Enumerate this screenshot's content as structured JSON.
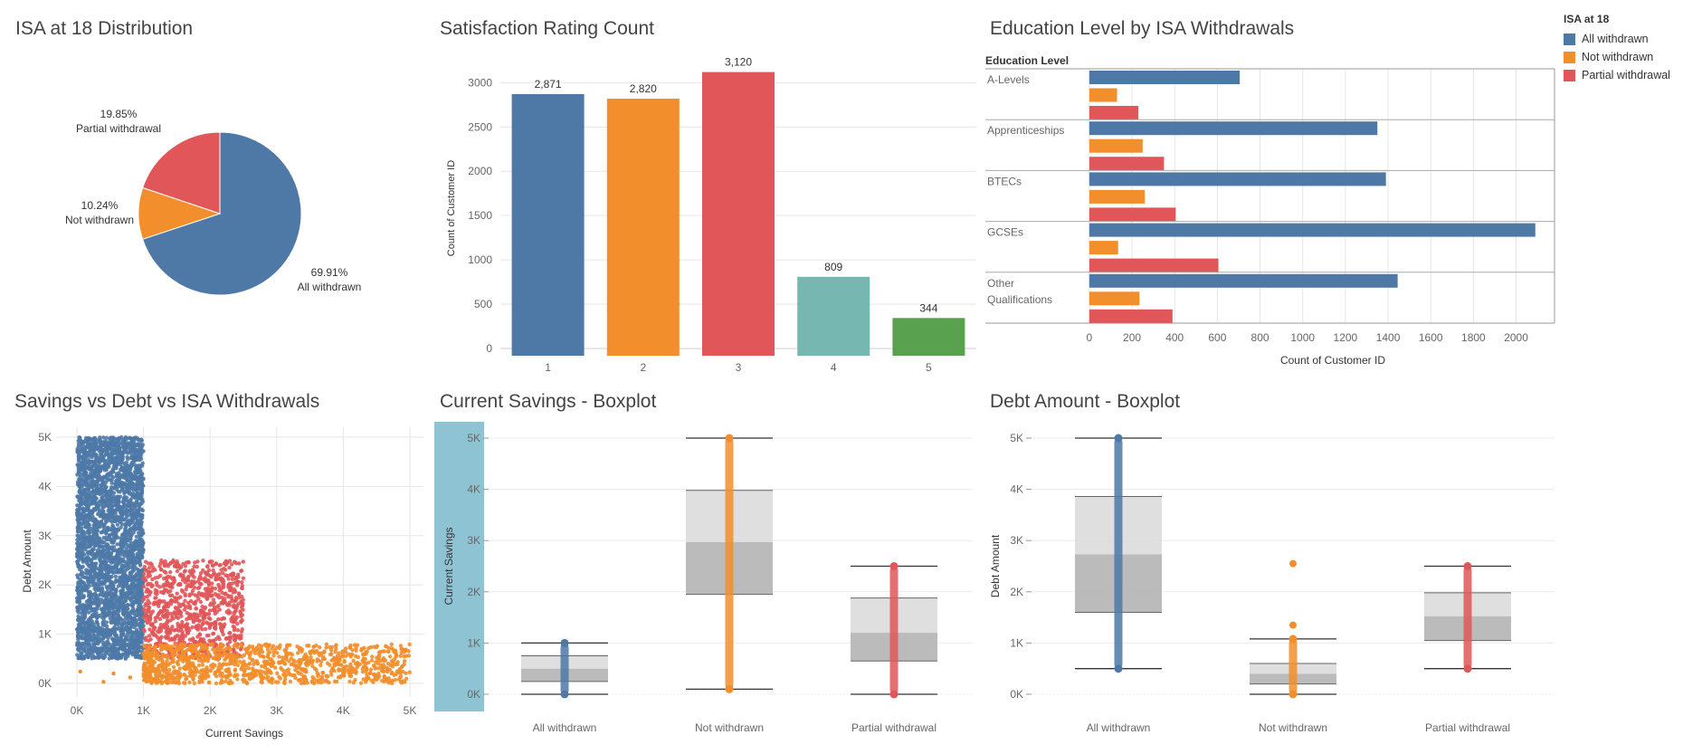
{
  "titles": {
    "pie": "ISA at 18 Distribution",
    "bar": "Satisfaction Rating Count",
    "edu": "Education Level by ISA Withdrawals",
    "scatter": "Savings vs Debt vs ISA Withdrawals",
    "box_savings": "Current Savings - Boxplot",
    "box_debt": "Debt Amount - Boxplot"
  },
  "colors": {
    "all_withdrawn": "#4e79a7",
    "not_withdrawn": "#f28e2b",
    "partial_withdrawal": "#e15759",
    "rating4": "#76b7b2",
    "rating5": "#59a14f",
    "highlight": "#8ec3d3"
  },
  "legend": {
    "title": "ISA at 18",
    "items": [
      "All withdrawn",
      "Not withdrawn",
      "Partial withdrawal"
    ]
  },
  "chart_data": [
    {
      "type": "pie",
      "title": "ISA at 18 Distribution",
      "slices": [
        {
          "label": "All withdrawn",
          "value": 69.91,
          "text": "69.91%"
        },
        {
          "label": "Not withdrawn",
          "value": 10.24,
          "text": "10.24%"
        },
        {
          "label": "Partial withdrawal",
          "value": 19.85,
          "text": "19.85%"
        }
      ]
    },
    {
      "type": "bar",
      "title": "Satisfaction Rating Count",
      "categories": [
        "1",
        "2",
        "3",
        "4",
        "5"
      ],
      "values": [
        2871,
        2820,
        3120,
        809,
        344
      ],
      "data_labels": [
        "2,871",
        "2,820",
        "3,120",
        "809",
        "344"
      ],
      "ylabel": "Count of Customer ID",
      "ylim": [
        0,
        3300
      ],
      "yticks": [
        0,
        500,
        1000,
        1500,
        2000,
        2500,
        3000
      ],
      "grid": true
    },
    {
      "type": "bar",
      "orientation": "horizontal",
      "title": "Education Level by ISA Withdrawals",
      "row_header": "Education Level",
      "categories": [
        "A-Levels",
        "Apprenticeships",
        "BTECs",
        "GCSEs",
        "Other Qualifications"
      ],
      "series": [
        {
          "name": "All withdrawn",
          "values": [
            705,
            1350,
            1390,
            2090,
            1445
          ]
        },
        {
          "name": "Not withdrawn",
          "values": [
            130,
            250,
            260,
            135,
            235
          ]
        },
        {
          "name": "Partial withdrawal",
          "values": [
            230,
            350,
            405,
            605,
            390
          ]
        }
      ],
      "xlabel": "Count of Customer ID",
      "xlim": [
        -80,
        2180
      ],
      "xticks": [
        0,
        200,
        400,
        600,
        800,
        1000,
        1200,
        1400,
        1600,
        1800,
        2000
      ],
      "grid": true
    },
    {
      "type": "scatter",
      "title": "Savings vs Debt vs ISA Withdrawals",
      "xlabel": "Current Savings",
      "ylabel": "Debt Amount",
      "xlim": [
        -300,
        5200
      ],
      "ylim": [
        -100,
        5100
      ],
      "xticks": [
        "0K",
        "1K",
        "2K",
        "3K",
        "4K",
        "5K"
      ],
      "yticks": [
        "0K",
        "1K",
        "2K",
        "3K",
        "4K",
        "5K"
      ],
      "series": [
        {
          "name": "All withdrawn",
          "x_range": [
            0,
            1000
          ],
          "y_range": [
            500,
            5000
          ]
        },
        {
          "name": "Partial withdrawal",
          "x_range": [
            1000,
            2500
          ],
          "y_range": [
            500,
            2500
          ]
        },
        {
          "name": "Not withdrawn",
          "x_range": [
            1000,
            5000
          ],
          "y_range": [
            0,
            800
          ]
        }
      ]
    },
    {
      "type": "boxplot",
      "title": "Current Savings - Boxplot",
      "ylabel": "Current Savings",
      "categories": [
        "All withdrawn",
        "Not withdrawn",
        "Partial withdrawal"
      ],
      "ylim": [
        -200,
        5300
      ],
      "yticks": [
        "0K",
        "1K",
        "2K",
        "3K",
        "4K",
        "5K"
      ],
      "boxes": [
        {
          "name": "All withdrawn",
          "min": 0,
          "q1": 250,
          "median": 500,
          "q3": 750,
          "max": 1000
        },
        {
          "name": "Not withdrawn",
          "min": 100,
          "q1": 1950,
          "median": 2970,
          "q3": 3980,
          "max": 5000
        },
        {
          "name": "Partial withdrawal",
          "min": 0,
          "q1": 650,
          "median": 1200,
          "q3": 1880,
          "max": 2500
        }
      ]
    },
    {
      "type": "boxplot",
      "title": "Debt Amount - Boxplot",
      "ylabel": "Debt Amount",
      "categories": [
        "All withdrawn",
        "Not withdrawn",
        "Partial withdrawal"
      ],
      "ylim": [
        -200,
        5300
      ],
      "yticks": [
        "0K",
        "1K",
        "2K",
        "3K",
        "4K",
        "5K"
      ],
      "boxes": [
        {
          "name": "All withdrawn",
          "min": 500,
          "q1": 1600,
          "median": 2730,
          "q3": 3860,
          "max": 5000
        },
        {
          "name": "Not withdrawn",
          "min": 0,
          "q1": 200,
          "median": 400,
          "q3": 600,
          "max": 1080,
          "outliers": [
            1350,
            2550
          ]
        },
        {
          "name": "Partial withdrawal",
          "min": 500,
          "q1": 1050,
          "median": 1520,
          "q3": 1980,
          "max": 2500
        }
      ]
    }
  ]
}
